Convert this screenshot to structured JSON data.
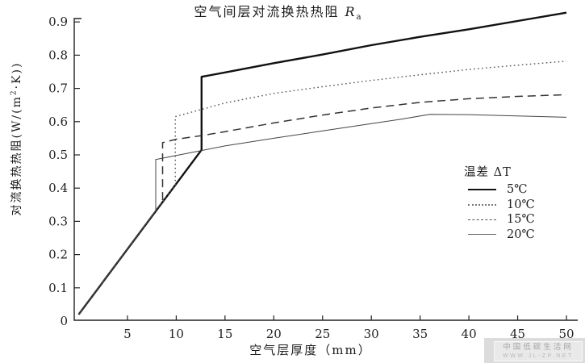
{
  "title": {
    "main": "空气间层对流换热热阻 ",
    "symbol": "R",
    "subscript": "a"
  },
  "y_axis": {
    "label_prefix": "对流换热热阻(W/(m",
    "label_sup": "2",
    "label_suffix": "·K))",
    "tick_labels": [
      "0",
      "0.1",
      "0.2",
      "0.3",
      "0.4",
      "0.5",
      "0.6",
      "0.7",
      "0.8",
      "0.9"
    ]
  },
  "x_axis": {
    "label": "空气层厚度（mm）",
    "tick_labels": [
      "5",
      "10",
      "15",
      "20",
      "25",
      "30",
      "35",
      "40",
      "45",
      "50"
    ]
  },
  "legend": {
    "title": "温差 ΔT",
    "items": [
      {
        "label": "5℃",
        "style": "solid-thick"
      },
      {
        "label": "10℃",
        "style": "dotted"
      },
      {
        "label": "15℃",
        "style": "dashed"
      },
      {
        "label": "20℃",
        "style": "solid-thin"
      }
    ]
  },
  "watermark": {
    "line1": "中国低碳生活网",
    "line2": "WWW.JL-ZP.NET"
  },
  "colors": {
    "line": "#222222",
    "text": "#1c1c1c",
    "watermark_bg": "#e9e9e9",
    "watermark_text": "#a6a6a6"
  },
  "chart_data": {
    "type": "line",
    "title": "空气间层对流换热热阻 Ra",
    "xlabel": "空气层厚度（mm）",
    "ylabel": "对流换热热阻(W/(m²·K))",
    "xlim": [
      0,
      51
    ],
    "ylim": [
      0,
      0.93
    ],
    "x_ticks": [
      5,
      10,
      15,
      20,
      25,
      30,
      35,
      40,
      45,
      50
    ],
    "y_ticks": [
      0,
      0.1,
      0.2,
      0.3,
      0.4,
      0.5,
      0.6,
      0.7,
      0.8,
      0.9
    ],
    "grid": false,
    "legend_position": "right-middle",
    "series": [
      {
        "name": "5℃",
        "line_style": "solid",
        "line_width": 2.4,
        "points": [
          [
            0,
            0.02
          ],
          [
            12.6,
            0.515
          ],
          [
            12.6,
            0.735
          ],
          [
            15,
            0.748
          ],
          [
            20,
            0.776
          ],
          [
            25,
            0.802
          ],
          [
            30,
            0.83
          ],
          [
            35,
            0.855
          ],
          [
            40,
            0.878
          ],
          [
            45,
            0.903
          ],
          [
            50,
            0.928
          ]
        ]
      },
      {
        "name": "10℃",
        "line_style": "dotted",
        "line_width": 1.4,
        "points": [
          [
            0,
            0.02
          ],
          [
            9.9,
            0.41
          ],
          [
            9.9,
            0.615
          ],
          [
            12,
            0.632
          ],
          [
            15,
            0.656
          ],
          [
            20,
            0.685
          ],
          [
            25,
            0.705
          ],
          [
            30,
            0.724
          ],
          [
            35,
            0.741
          ],
          [
            40,
            0.757
          ],
          [
            45,
            0.77
          ],
          [
            50,
            0.782
          ]
        ]
      },
      {
        "name": "15℃",
        "line_style": "dashed",
        "line_width": 1.5,
        "points": [
          [
            0,
            0.02
          ],
          [
            8.6,
            0.36
          ],
          [
            8.6,
            0.537
          ],
          [
            10,
            0.547
          ],
          [
            12.6,
            0.558
          ],
          [
            15,
            0.57
          ],
          [
            20,
            0.596
          ],
          [
            25,
            0.62
          ],
          [
            30,
            0.641
          ],
          [
            35,
            0.658
          ],
          [
            40,
            0.669
          ],
          [
            45,
            0.676
          ],
          [
            50,
            0.681
          ]
        ]
      },
      {
        "name": "20℃",
        "line_style": "solid",
        "line_width": 1.0,
        "points": [
          [
            0,
            0.02
          ],
          [
            7.9,
            0.332
          ],
          [
            7.9,
            0.486
          ],
          [
            10,
            0.498
          ],
          [
            12.6,
            0.513
          ],
          [
            15,
            0.527
          ],
          [
            20,
            0.55
          ],
          [
            25,
            0.572
          ],
          [
            30,
            0.594
          ],
          [
            33,
            0.607
          ],
          [
            36,
            0.622
          ],
          [
            40,
            0.621
          ],
          [
            45,
            0.617
          ],
          [
            50,
            0.613
          ]
        ]
      }
    ]
  }
}
